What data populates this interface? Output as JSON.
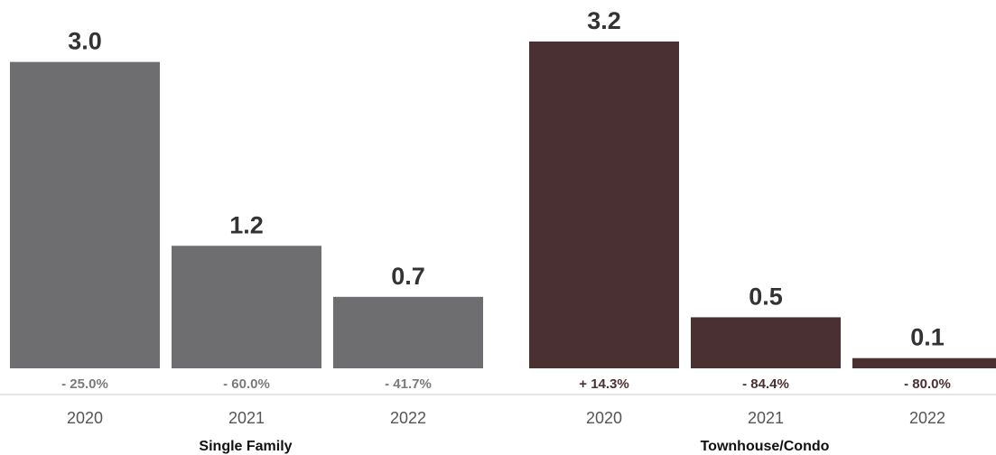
{
  "chart_data": {
    "type": "bar",
    "ylim": [
      0,
      3.2
    ],
    "groups": [
      {
        "name": "Single Family",
        "color": "#6e6e70",
        "pct_color": "#7a7a7c",
        "bars": [
          {
            "category": "2020",
            "value": 3.0,
            "value_label": "3.0",
            "change": "- 25.0%"
          },
          {
            "category": "2021",
            "value": 1.2,
            "value_label": "1.2",
            "change": "- 60.0%"
          },
          {
            "category": "2022",
            "value": 0.7,
            "value_label": "0.7",
            "change": "- 41.7%"
          }
        ]
      },
      {
        "name": "Townhouse/Condo",
        "color": "#4a3032",
        "pct_color": "#4a3032",
        "bars": [
          {
            "category": "2020",
            "value": 3.2,
            "value_label": "3.2",
            "change": "+ 14.3%"
          },
          {
            "category": "2021",
            "value": 0.5,
            "value_label": "0.5",
            "change": "- 84.4%"
          },
          {
            "category": "2022",
            "value": 0.1,
            "value_label": "0.1",
            "change": "- 80.0%"
          }
        ]
      }
    ]
  }
}
